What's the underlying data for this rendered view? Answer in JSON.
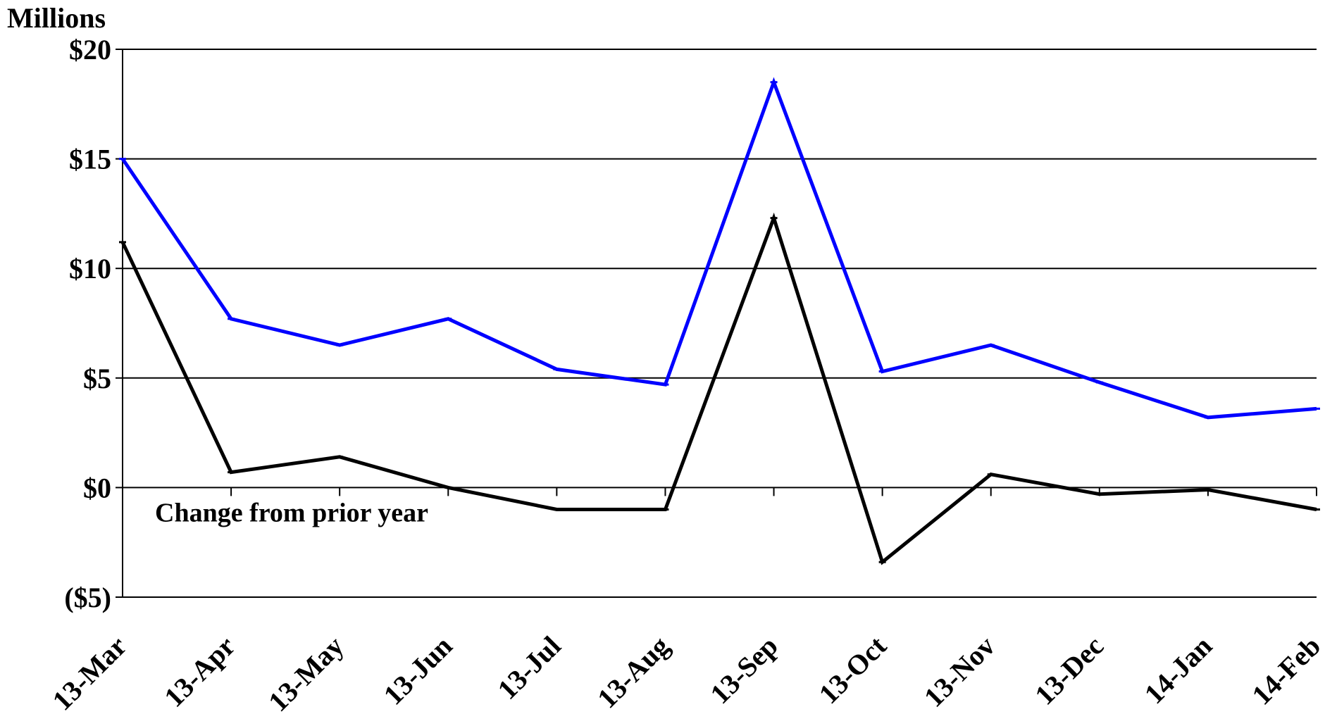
{
  "chart_data": {
    "type": "line",
    "unit_label": "Millions",
    "categories": [
      "13-Mar",
      "13-Apr",
      "13-May",
      "13-Jun",
      "13-Jul",
      "13-Aug",
      "13-Sep",
      "13-Oct",
      "13-Nov",
      "13-Dec",
      "14-Jan",
      "14-Feb"
    ],
    "ylim": [
      -5,
      20
    ],
    "yticks": [
      {
        "value": 20,
        "label": "$20"
      },
      {
        "value": 15,
        "label": "$15"
      },
      {
        "value": 10,
        "label": "$10"
      },
      {
        "value": 5,
        "label": "$5"
      },
      {
        "value": 0,
        "label": "$0"
      },
      {
        "value": -5,
        "label": "($5)"
      }
    ],
    "grid": true,
    "series": [
      {
        "color": "#0000ff",
        "values": [
          15.0,
          7.7,
          6.5,
          7.7,
          5.4,
          4.7,
          18.5,
          5.3,
          6.5,
          4.8,
          3.2,
          3.6
        ]
      },
      {
        "name": "Change from prior year",
        "color": "#000000",
        "values": [
          11.2,
          0.7,
          1.4,
          0.0,
          -1.0,
          -1.0,
          12.3,
          -3.4,
          0.6,
          -0.3,
          -0.1,
          -1.0
        ]
      }
    ],
    "annotations": [
      {
        "text": "Change from prior year"
      }
    ]
  }
}
